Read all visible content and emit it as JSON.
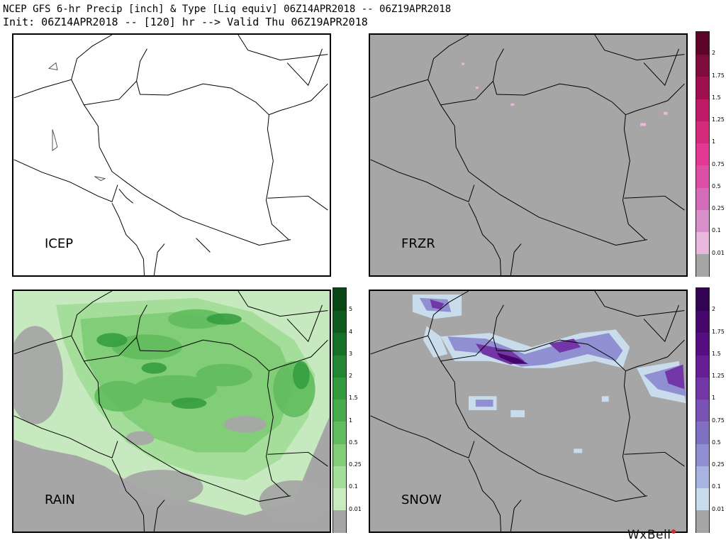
{
  "header": {
    "line1": "NCEP GFS 6-hr Precip [inch] & Type [Liq equiv] 06Z14APR2018 -- 06Z19APR2018",
    "line2": "Init: 06Z14APR2018 -- [120] hr --> Valid Thu 06Z19APR2018"
  },
  "panels": {
    "icep": {
      "label": "ICEP"
    },
    "frzr": {
      "label": "FRZR"
    },
    "rain": {
      "label": "RAIN"
    },
    "snow": {
      "label": "SNOW"
    }
  },
  "colorbars": {
    "frzr": {
      "ticks": [
        "2",
        "1.75",
        "1.5",
        "1.25",
        "1",
        "0.75",
        "0.5",
        "0.25",
        "0.1",
        "0.01"
      ],
      "colors": [
        "#a6a6a6",
        "#e8b8de",
        "#d98fc9",
        "#d46cba",
        "#dc4fa6",
        "#e33994",
        "#d52a7c",
        "#bf1a66",
        "#9e0f4f",
        "#7f0a3c",
        "#5e0429"
      ]
    },
    "rain": {
      "ticks": [
        "5",
        "4",
        "3",
        "2",
        "1.5",
        "1",
        "0.5",
        "0.25",
        "0.1",
        "0.01"
      ],
      "colors": [
        "#a6a6a6",
        "#c8ecc0",
        "#a5dd9a",
        "#82cd78",
        "#61bd5e",
        "#47ad4c",
        "#329b3e",
        "#238632",
        "#177028",
        "#0e5a1f",
        "#084616"
      ]
    },
    "snow": {
      "ticks": [
        "2",
        "1.75",
        "1.5",
        "1.25",
        "1",
        "0.75",
        "0.5",
        "0.25",
        "0.1",
        "0.01"
      ],
      "colors": [
        "#a6a6a6",
        "#c9dcec",
        "#a8b4e0",
        "#8f8fd2",
        "#8070c4",
        "#7a52b6",
        "#7236a6",
        "#661d95",
        "#560e82",
        "#45076c",
        "#330354"
      ]
    }
  },
  "logo": {
    "text": "WxBell"
  }
}
